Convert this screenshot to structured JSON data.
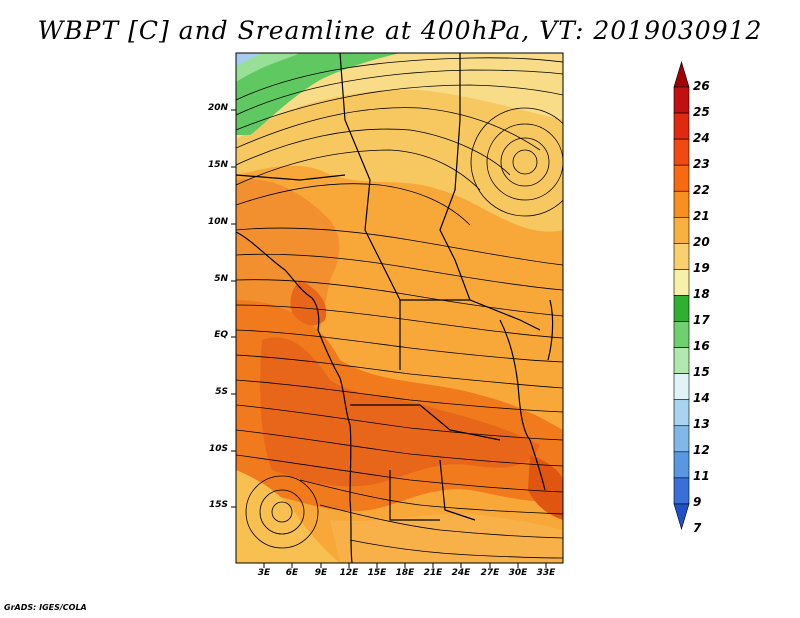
{
  "title": "WBPT [C] and Sreamline at 400hPa, VT: 2019030912",
  "credit": "GrADS: IGES/COLA",
  "lat_labels": [
    "20N",
    "15N",
    "10N",
    "5N",
    "EQ",
    "5S",
    "10S",
    "15S"
  ],
  "lon_labels": [
    "3E",
    "6E",
    "9E",
    "12E",
    "15E",
    "18E",
    "21E",
    "24E",
    "27E",
    "30E",
    "33E"
  ],
  "colorbar": {
    "levels": [
      "26",
      "25",
      "24",
      "23",
      "22",
      "21",
      "20",
      "19",
      "18",
      "17",
      "16",
      "15",
      "14",
      "13",
      "12",
      "11",
      "9",
      "7"
    ],
    "colors": [
      "#a00000",
      "#c01010",
      "#e02a10",
      "#f04a10",
      "#f86a10",
      "#f89020",
      "#f8b040",
      "#f8d070",
      "#f8f0a8",
      "#30b030",
      "#70d070",
      "#b0e8b0",
      "#e0f4f8",
      "#a8d4f0",
      "#80b8e8",
      "#5898e0",
      "#3870d8",
      "#2050c8"
    ]
  },
  "map": {
    "colors": {
      "green_dark": "#50c050",
      "green_light": "#90e090",
      "light_yellow": "#f8e088",
      "yellow": "#f8c050",
      "orange": "#f8a030",
      "dark_orange": "#f07818",
      "red_orange": "#e85a10",
      "blue": "#a0c8f0"
    }
  }
}
